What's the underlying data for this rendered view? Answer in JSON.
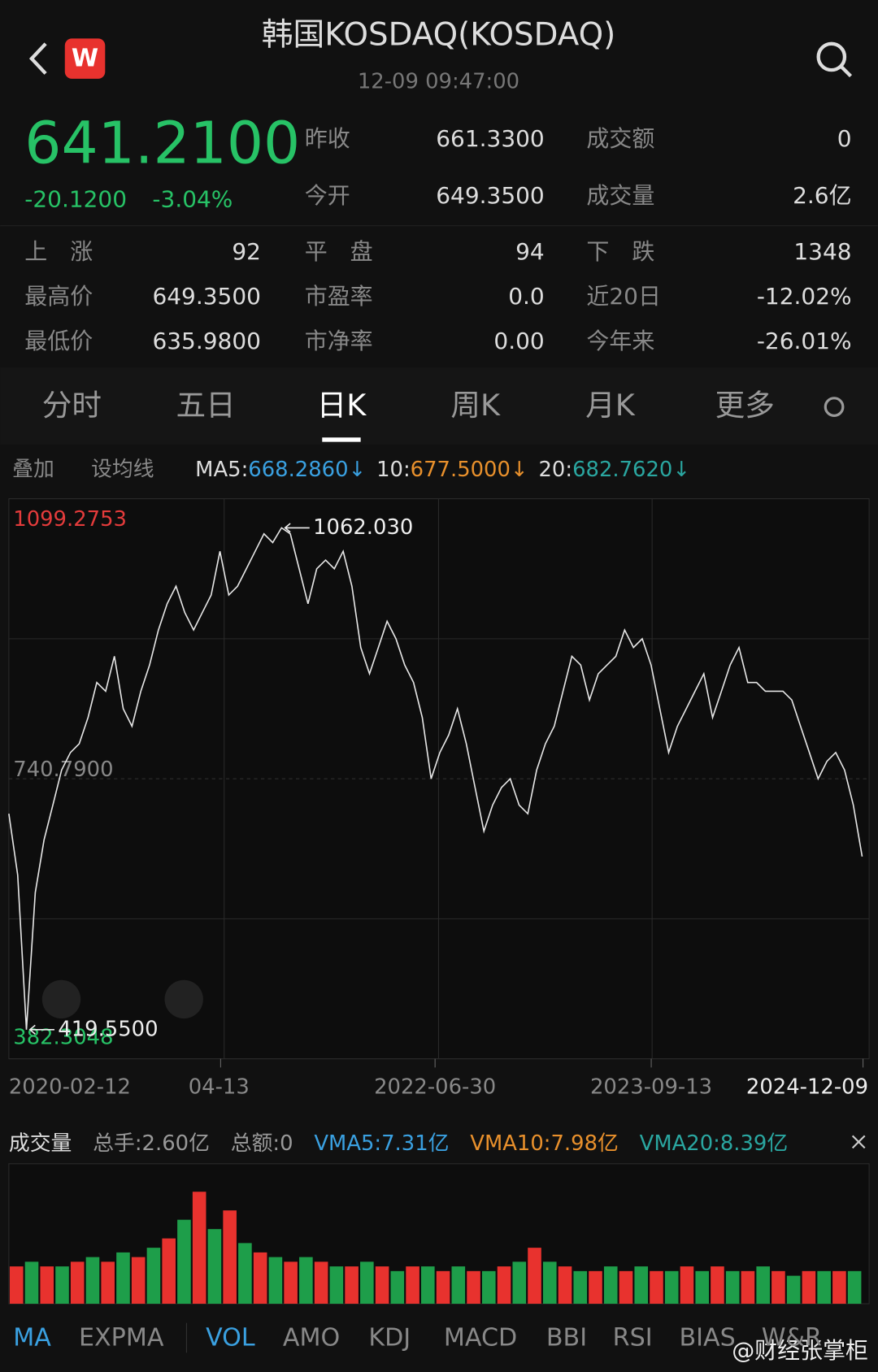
{
  "header": {
    "title": "韩国KOSDAQ(KOSDAQ)",
    "time": "12-09 09:47:00",
    "logo": "W"
  },
  "quote": {
    "price": "641.2100",
    "change": "-20.1200",
    "percent": "-3.04%"
  },
  "stats": {
    "top": [
      [
        {
          "label": "昨收",
          "value": "661.3300"
        },
        {
          "label": "成交额",
          "value": "0"
        }
      ],
      [
        {
          "label": "今开",
          "value": "649.3500"
        },
        {
          "label": "成交量",
          "value": "2.6亿"
        }
      ]
    ],
    "grid": [
      [
        {
          "label": "上　涨",
          "value": "92"
        },
        {
          "label": "平　盘",
          "value": "94"
        },
        {
          "label": "下　跌",
          "value": "1348"
        }
      ],
      [
        {
          "label": "最高价",
          "value": "649.3500"
        },
        {
          "label": "市盈率",
          "value": "0.0"
        },
        {
          "label": "近20日",
          "value": "-12.02%"
        }
      ],
      [
        {
          "label": "最低价",
          "value": "635.9800"
        },
        {
          "label": "市净率",
          "value": "0.00"
        },
        {
          "label": "今年来",
          "value": "-26.01%"
        }
      ]
    ]
  },
  "tabs": {
    "items": [
      "分时",
      "五日",
      "日K",
      "周K",
      "月K",
      "更多"
    ],
    "active": 2
  },
  "ma_bar": {
    "overlay": "叠加",
    "set_ma": "设均线",
    "items": [
      {
        "label": "MA5:",
        "value": "668.2860",
        "arrow": "↓",
        "color": "#3aa0e0"
      },
      {
        "label": "10:",
        "value": "677.5000",
        "arrow": "↓",
        "color": "#e8902c"
      },
      {
        "label": "20:",
        "value": "682.7620",
        "arrow": "↓",
        "color": "#2aa6a0"
      }
    ]
  },
  "chart_data": {
    "type": "line",
    "color": "#e6e6e6",
    "ylim": [
      382.3048,
      1099.2753
    ],
    "yticks": [
      1099.2753,
      {
        "value": 740.79,
        "label": "740.7900"
      },
      382.3048
    ],
    "x_labels": [
      "2020-02-12",
      "04-13",
      "2022-06-30",
      "2023-09-13",
      "2024-12-09"
    ],
    "annotations": [
      {
        "value": 1062.03,
        "label": "1062.030"
      },
      {
        "value": 419.55,
        "label": "419.5500"
      }
    ],
    "values": [
      696.0,
      617.6,
      419.55,
      595.2,
      662.4,
      707.2,
      752.0,
      774.4,
      785.6,
      819.2,
      864.0,
      852.8,
      897.6,
      830.4,
      808.0,
      852.8,
      886.4,
      931.2,
      964.8,
      987.2,
      953.6,
      931.2,
      953.6,
      976.0,
      1032.0,
      976.0,
      987.2,
      1009.6,
      1032.0,
      1054.4,
      1043.2,
      1062.03,
      1054.4,
      1009.6,
      964.8,
      1009.6,
      1020.8,
      1009.6,
      1032.0,
      987.2,
      908.8,
      875.2,
      908.8,
      942.4,
      920.0,
      886.4,
      864.0,
      819.2,
      740.8,
      774.4,
      796.8,
      830.4,
      785.6,
      729.6,
      673.6,
      707.2,
      729.6,
      740.8,
      707.2,
      696.0,
      752.0,
      785.6,
      808.0,
      852.8,
      897.6,
      886.4,
      841.6,
      875.2,
      886.4,
      897.6,
      931.2,
      908.8,
      920.0,
      886.4,
      830.4,
      774.4,
      808.0,
      830.4,
      852.8,
      875.2,
      819.2,
      852.8,
      886.4,
      908.8,
      864.0,
      864.0,
      852.8,
      852.8,
      852.8,
      841.6,
      808.0,
      774.4,
      740.8,
      763.2,
      774.4,
      752.0,
      707.2,
      641.21
    ]
  },
  "volume": {
    "title": "成交量",
    "total_hands": "总手:2.60亿",
    "total_amount": "总额:0",
    "vma": [
      {
        "text": "VMA5:7.31亿",
        "color": "#3aa0e0"
      },
      {
        "text": "VMA10:7.98亿",
        "color": "#e8902c"
      },
      {
        "text": "VMA20:8.39亿",
        "color": "#2aa6a0"
      }
    ],
    "type": "bar",
    "colors": [
      "#e8322e",
      "#1e9e4a"
    ],
    "ylim": [
      0,
      30
    ],
    "values": [
      8,
      9,
      8,
      8,
      9,
      10,
      9,
      11,
      10,
      12,
      14,
      18,
      24,
      16,
      20,
      13,
      11,
      10,
      9,
      10,
      9,
      8,
      8,
      9,
      8,
      7,
      8,
      8,
      7,
      8,
      7,
      7,
      8,
      9,
      12,
      9,
      8,
      7,
      7,
      8,
      7,
      8,
      7,
      7,
      8,
      7,
      8,
      7,
      7,
      8,
      7,
      6,
      7,
      7,
      7,
      7
    ]
  },
  "indicators": {
    "items": [
      "MA",
      "EXPMA",
      "VOL",
      "AMO",
      "KDJ",
      "MACD",
      "BBI",
      "RSI",
      "BIAS",
      "W&R"
    ],
    "active": [
      0,
      2
    ]
  },
  "watermark": "@财经张掌柜"
}
